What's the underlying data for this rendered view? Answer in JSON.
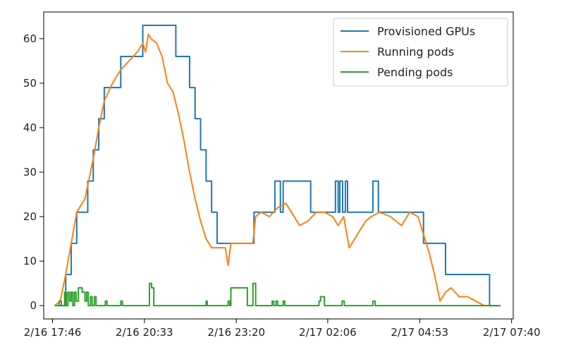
{
  "chart_data": {
    "type": "line",
    "title": "",
    "xlabel": "",
    "ylabel": "",
    "ylim": [
      -3,
      66
    ],
    "xlim": [
      "2/16 17:30",
      "2/17 07:43"
    ],
    "grid": false,
    "legend_position": "top-right",
    "x_ticks": [
      "2/16 17:46",
      "2/16 20:33",
      "2/16 23:20",
      "2/17 02:06",
      "2/17 04:53",
      "2/17 07:40"
    ],
    "y_ticks": [
      0,
      10,
      20,
      30,
      40,
      50,
      60
    ],
    "series": [
      {
        "name": "Provisioned GPUs",
        "color": "#1f77b4",
        "step": true,
        "points": [
          [
            "2/16 17:50",
            0
          ],
          [
            "2/16 18:00",
            0
          ],
          [
            "2/16 18:10",
            7
          ],
          [
            "2/16 18:20",
            14
          ],
          [
            "2/16 18:30",
            21
          ],
          [
            "2/16 18:40",
            21
          ],
          [
            "2/16 18:50",
            28
          ],
          [
            "2/16 19:00",
            35
          ],
          [
            "2/16 19:10",
            42
          ],
          [
            "2/16 19:20",
            49
          ],
          [
            "2/16 19:40",
            49
          ],
          [
            "2/16 19:50",
            56
          ],
          [
            "2/16 20:20",
            56
          ],
          [
            "2/16 20:30",
            63
          ],
          [
            "2/16 21:20",
            63
          ],
          [
            "2/16 21:30",
            56
          ],
          [
            "2/16 21:45",
            56
          ],
          [
            "2/16 21:55",
            49
          ],
          [
            "2/16 22:05",
            42
          ],
          [
            "2/16 22:15",
            35
          ],
          [
            "2/16 22:25",
            28
          ],
          [
            "2/16 22:35",
            21
          ],
          [
            "2/16 22:45",
            14
          ],
          [
            "2/16 23:05",
            14
          ],
          [
            "2/16 23:45",
            14
          ],
          [
            "2/16 23:52",
            21
          ],
          [
            "2/17 00:20",
            21
          ],
          [
            "2/17 00:30",
            28
          ],
          [
            "2/17 00:40",
            21
          ],
          [
            "2/17 00:45",
            28
          ],
          [
            "2/17 01:25",
            28
          ],
          [
            "2/17 01:35",
            21
          ],
          [
            "2/17 02:15",
            21
          ],
          [
            "2/17 02:20",
            28
          ],
          [
            "2/17 02:25",
            21
          ],
          [
            "2/17 02:28",
            28
          ],
          [
            "2/17 02:33",
            21
          ],
          [
            "2/17 02:38",
            28
          ],
          [
            "2/17 02:42",
            21
          ],
          [
            "2/17 03:20",
            21
          ],
          [
            "2/17 03:28",
            28
          ],
          [
            "2/17 03:38",
            21
          ],
          [
            "2/17 04:55",
            21
          ],
          [
            "2/17 05:00",
            14
          ],
          [
            "2/17 05:30",
            14
          ],
          [
            "2/17 05:40",
            7
          ],
          [
            "2/17 06:50",
            7
          ],
          [
            "2/17 07:00",
            0
          ],
          [
            "2/17 07:20",
            0
          ]
        ]
      },
      {
        "name": "Running pods",
        "color": "#ff7f0e",
        "step": false,
        "points": [
          [
            "2/16 17:50",
            0
          ],
          [
            "2/16 18:00",
            1
          ],
          [
            "2/16 18:10",
            7
          ],
          [
            "2/16 18:20",
            14
          ],
          [
            "2/16 18:30",
            21
          ],
          [
            "2/16 18:45",
            24
          ],
          [
            "2/16 19:00",
            33
          ],
          [
            "2/16 19:10",
            40
          ],
          [
            "2/16 19:20",
            46
          ],
          [
            "2/16 19:35",
            50
          ],
          [
            "2/16 19:50",
            53
          ],
          [
            "2/16 20:05",
            55
          ],
          [
            "2/16 20:20",
            57
          ],
          [
            "2/16 20:30",
            59
          ],
          [
            "2/16 20:35",
            57
          ],
          [
            "2/16 20:40",
            61
          ],
          [
            "2/16 20:45",
            60
          ],
          [
            "2/16 20:55",
            59
          ],
          [
            "2/16 21:05",
            56
          ],
          [
            "2/16 21:15",
            50
          ],
          [
            "2/16 21:25",
            48
          ],
          [
            "2/16 21:35",
            43
          ],
          [
            "2/16 21:45",
            37
          ],
          [
            "2/16 21:55",
            30
          ],
          [
            "2/16 22:05",
            24
          ],
          [
            "2/16 22:15",
            19
          ],
          [
            "2/16 22:25",
            15
          ],
          [
            "2/16 22:35",
            13
          ],
          [
            "2/16 22:45",
            13
          ],
          [
            "2/16 23:00",
            13
          ],
          [
            "2/16 23:05",
            9
          ],
          [
            "2/16 23:10",
            14
          ],
          [
            "2/16 23:30",
            14
          ],
          [
            "2/16 23:50",
            14
          ],
          [
            "2/16 23:55",
            20
          ],
          [
            "2/17 00:05",
            21
          ],
          [
            "2/17 00:20",
            20
          ],
          [
            "2/17 00:35",
            22
          ],
          [
            "2/17 00:50",
            23
          ],
          [
            "2/17 01:00",
            21
          ],
          [
            "2/17 01:15",
            18
          ],
          [
            "2/17 01:30",
            19
          ],
          [
            "2/17 01:45",
            21
          ],
          [
            "2/17 02:00",
            21
          ],
          [
            "2/17 02:15",
            20
          ],
          [
            "2/17 02:25",
            18
          ],
          [
            "2/17 02:35",
            20
          ],
          [
            "2/17 02:45",
            13
          ],
          [
            "2/17 02:55",
            15
          ],
          [
            "2/17 03:05",
            17
          ],
          [
            "2/17 03:15",
            19
          ],
          [
            "2/17 03:25",
            20
          ],
          [
            "2/17 03:40",
            21
          ],
          [
            "2/17 04:00",
            20
          ],
          [
            "2/17 04:20",
            18
          ],
          [
            "2/17 04:35",
            21
          ],
          [
            "2/17 04:50",
            20
          ],
          [
            "2/17 05:00",
            16
          ],
          [
            "2/17 05:10",
            12
          ],
          [
            "2/17 05:20",
            7
          ],
          [
            "2/17 05:30",
            1
          ],
          [
            "2/17 05:40",
            3
          ],
          [
            "2/17 05:50",
            4
          ],
          [
            "2/17 06:05",
            2
          ],
          [
            "2/17 06:20",
            2
          ],
          [
            "2/17 06:35",
            1
          ],
          [
            "2/17 06:50",
            0
          ],
          [
            "2/17 07:20",
            0
          ]
        ]
      },
      {
        "name": "Pending pods",
        "color": "#2ca02c",
        "step": true,
        "points": [
          [
            "2/16 17:50",
            0
          ],
          [
            "2/16 17:58",
            1
          ],
          [
            "2/16 18:02",
            0
          ],
          [
            "2/16 18:08",
            3
          ],
          [
            "2/16 18:11",
            0
          ],
          [
            "2/16 18:14",
            3
          ],
          [
            "2/16 18:17",
            1
          ],
          [
            "2/16 18:20",
            3
          ],
          [
            "2/16 18:23",
            0
          ],
          [
            "2/16 18:26",
            3
          ],
          [
            "2/16 18:29",
            1
          ],
          [
            "2/16 18:33",
            4
          ],
          [
            "2/16 18:40",
            3
          ],
          [
            "2/16 18:45",
            1
          ],
          [
            "2/16 18:48",
            3
          ],
          [
            "2/16 18:51",
            0
          ],
          [
            "2/16 18:55",
            2
          ],
          [
            "2/16 18:58",
            0
          ],
          [
            "2/16 19:02",
            2
          ],
          [
            "2/16 19:05",
            0
          ],
          [
            "2/16 19:22",
            1
          ],
          [
            "2/16 19:25",
            0
          ],
          [
            "2/16 19:50",
            1
          ],
          [
            "2/16 19:53",
            0
          ],
          [
            "2/16 20:42",
            5
          ],
          [
            "2/16 20:46",
            4
          ],
          [
            "2/16 20:50",
            0
          ],
          [
            "2/16 22:25",
            1
          ],
          [
            "2/16 22:27",
            0
          ],
          [
            "2/16 23:05",
            1
          ],
          [
            "2/16 23:08",
            0
          ],
          [
            "2/16 23:10",
            4
          ],
          [
            "2/16 23:35",
            4
          ],
          [
            "2/16 23:40",
            0
          ],
          [
            "2/16 23:50",
            5
          ],
          [
            "2/16 23:55",
            0
          ],
          [
            "2/17 00:25",
            1
          ],
          [
            "2/17 00:28",
            0
          ],
          [
            "2/17 00:32",
            1
          ],
          [
            "2/17 00:35",
            0
          ],
          [
            "2/17 00:45",
            1
          ],
          [
            "2/17 00:48",
            0
          ],
          [
            "2/17 01:50",
            1
          ],
          [
            "2/17 01:53",
            2
          ],
          [
            "2/17 02:00",
            0
          ],
          [
            "2/17 02:32",
            1
          ],
          [
            "2/17 02:36",
            0
          ],
          [
            "2/17 03:28",
            1
          ],
          [
            "2/17 03:32",
            0
          ],
          [
            "2/17 07:20",
            0
          ]
        ]
      }
    ]
  }
}
